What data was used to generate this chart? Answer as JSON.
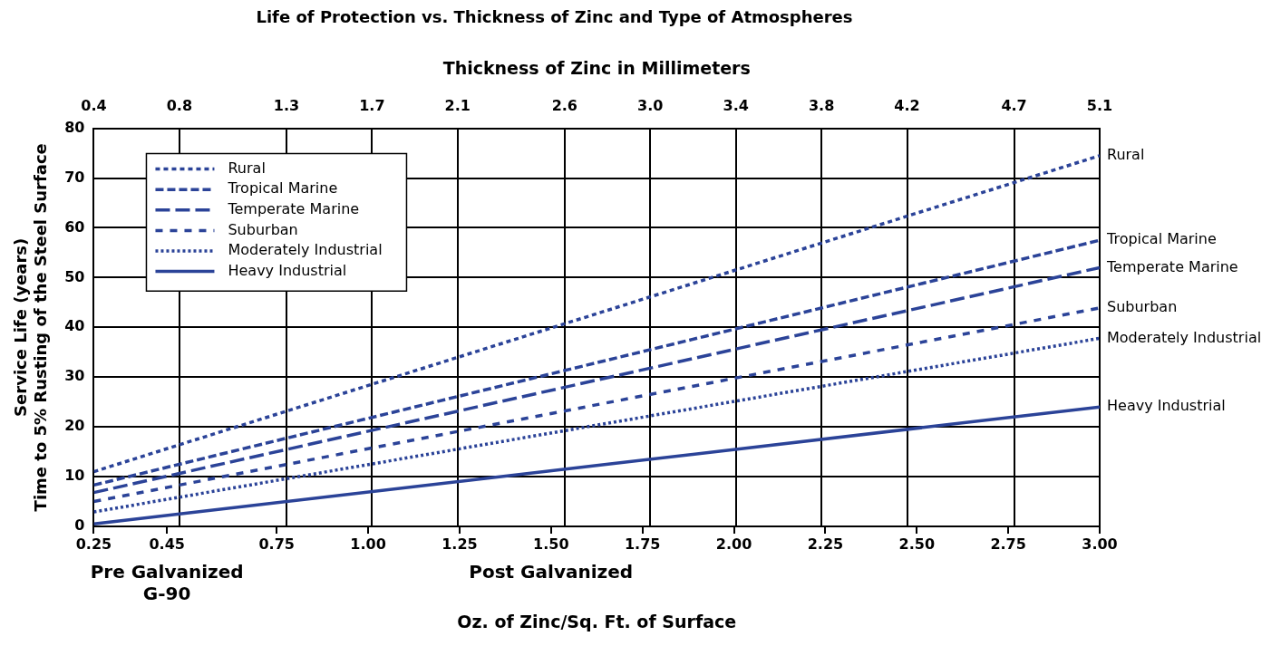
{
  "chart_data": {
    "type": "line",
    "title": "Life of Protection vs. Thickness of Zinc and Type of Atmospheres",
    "xlabel": "Oz. of Zinc/Sq. Ft. of Surface",
    "x2label": "Thickness of Zinc in Millimeters",
    "ylabel": "Service Life (years)\nTime to 5% Rusting of the Steel Surface",
    "annotations": [
      "Pre Galvanized\nG-90",
      "Post Galvanized"
    ],
    "x": [
      0.25,
      3.0
    ],
    "series": [
      {
        "name": "Rural",
        "color": "#2b4398",
        "line_style": "dashed",
        "values": [
          11,
          74.5
        ]
      },
      {
        "name": "Tropical Marine",
        "color": "#2b4398",
        "line_style": "dashed",
        "values": [
          8.3,
          57.5
        ]
      },
      {
        "name": "Temperate Marine",
        "color": "#2b4398",
        "line_style": "dashed",
        "values": [
          6.8,
          52
        ]
      },
      {
        "name": "Suburban",
        "color": "#2b4398",
        "line_style": "dashed",
        "values": [
          5,
          43.9
        ]
      },
      {
        "name": "Moderately Industrial",
        "color": "#2b4398",
        "line_style": "dotted",
        "values": [
          2.9,
          37.8
        ]
      },
      {
        "name": "Heavy Industrial",
        "color": "#2b4398",
        "line_style": "solid",
        "values": [
          0.5,
          24
        ]
      }
    ],
    "xlim": [
      0.25,
      3.0
    ],
    "xticks": [
      0.25,
      0.45,
      {
        "value": 0.75,
        "label": "0.75"
      },
      {
        "value": 1.0,
        "label": "1.00"
      },
      {
        "value": 1.25,
        "label": "1.25"
      },
      {
        "value": 1.5,
        "label": "1.50"
      },
      {
        "value": 1.75,
        "label": "1.75"
      },
      {
        "value": 2.0,
        "label": "2.00"
      },
      {
        "value": 2.25,
        "label": "2.25"
      },
      {
        "value": 2.5,
        "label": "2.50"
      },
      {
        "value": 2.75,
        "label": "2.75"
      },
      {
        "value": 3.0,
        "label": "3.00"
      }
    ],
    "x2lim": [
      0.4,
      5.1
    ],
    "x2ticks": [
      0.4,
      0.8,
      1.3,
      1.7,
      2.1,
      2.6,
      {
        "value": 3.0,
        "label": "3.0"
      },
      3.4,
      3.8,
      4.2,
      4.7,
      5.1
    ],
    "ylim": [
      0,
      80
    ],
    "yticks": [
      0,
      10,
      20,
      30,
      40,
      50,
      60,
      70,
      80
    ],
    "grid": true,
    "legend": "top left"
  }
}
